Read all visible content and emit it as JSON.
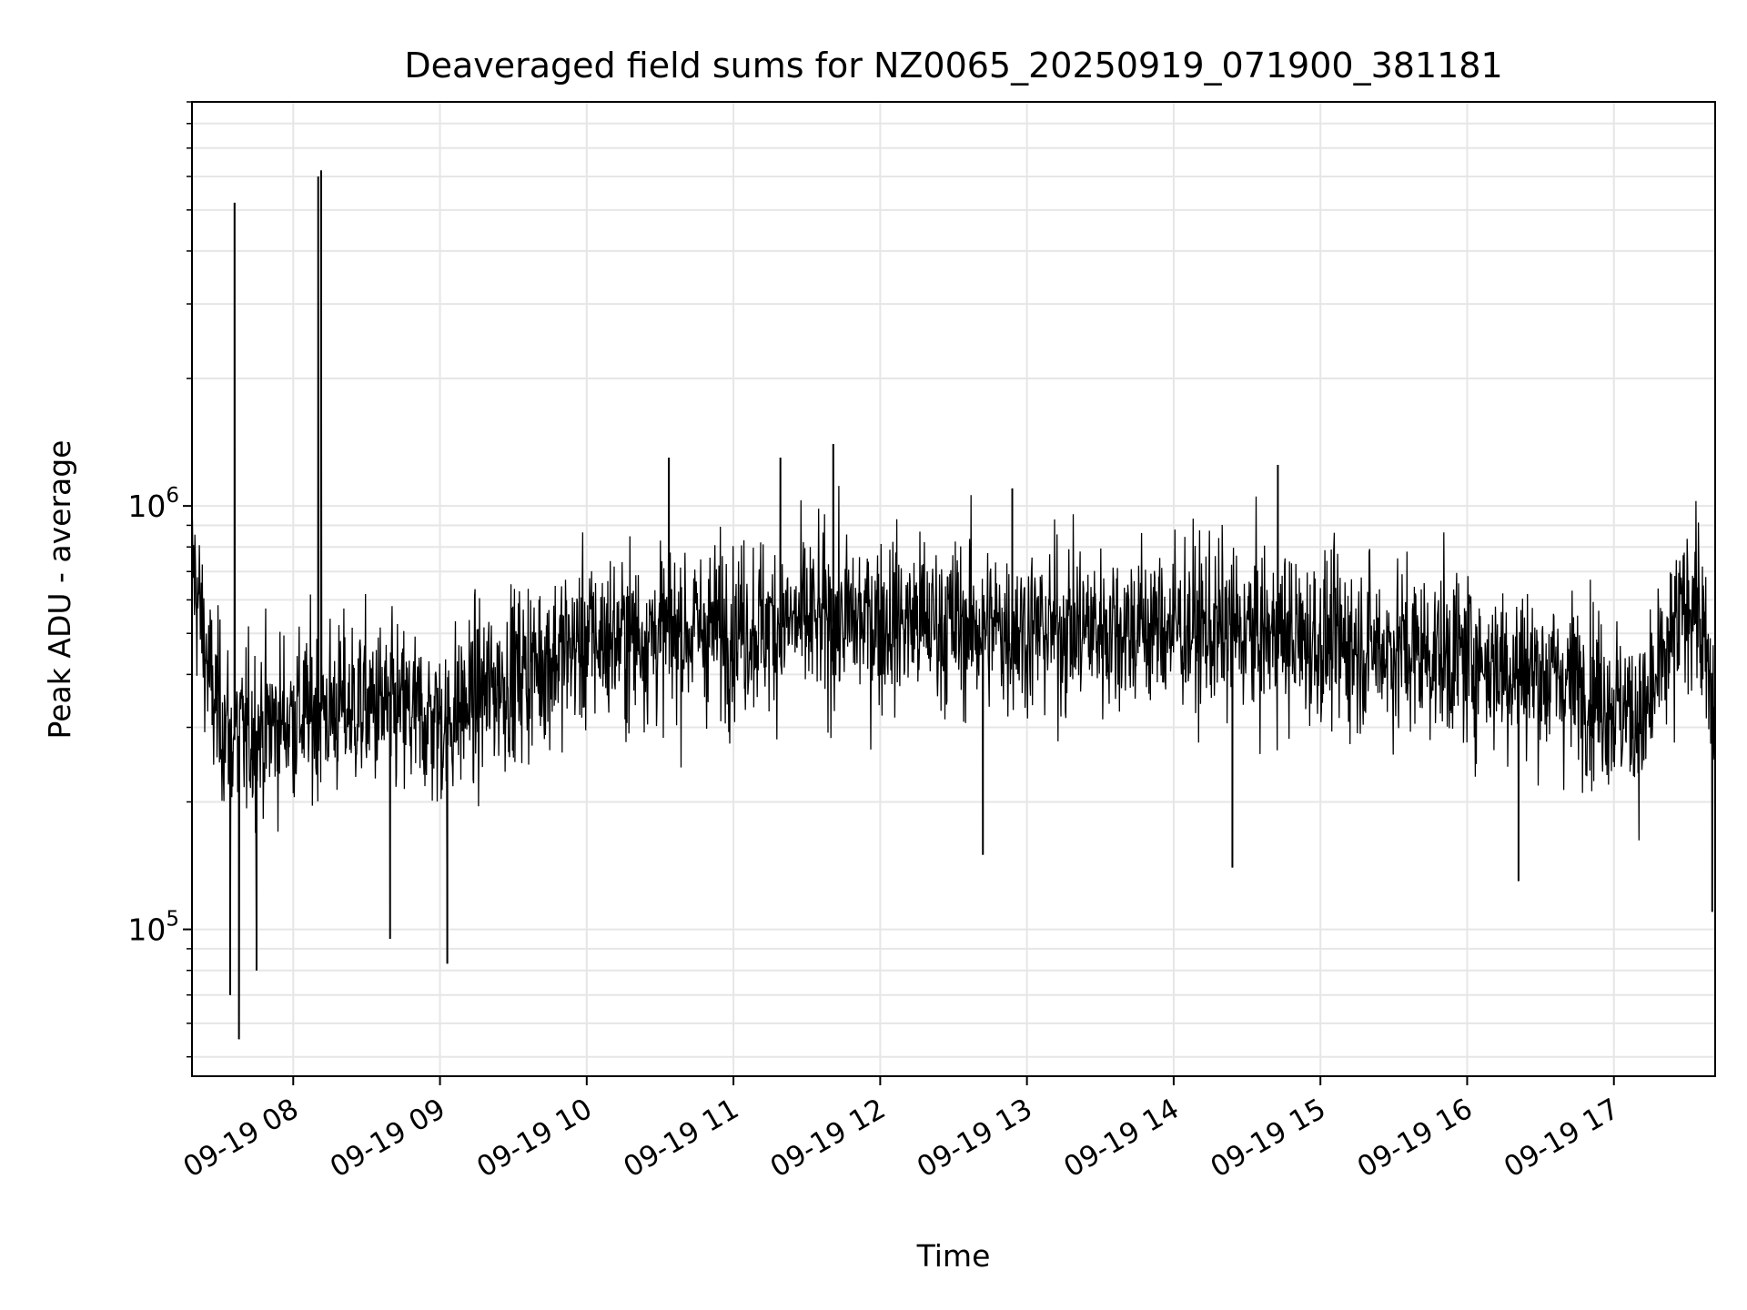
{
  "chart_data": {
    "type": "line",
    "title": "Deaveraged field sums for NZ0065_20250919_071900_381181",
    "xlabel": "Time",
    "ylabel": "Peak ADU - average",
    "yscale": "log",
    "ylim": [
      45000,
      9000000
    ],
    "xlim_hours": [
      7.31,
      17.69
    ],
    "grid": true,
    "line_color": "#000000",
    "grid_color": "#e6e6e6",
    "y_ticks": [
      {
        "value": 100000,
        "base": "10",
        "exp": "5"
      },
      {
        "value": 1000000,
        "base": "10",
        "exp": "6"
      }
    ],
    "x_ticks": [
      {
        "hour": 8,
        "label": "09-19 08"
      },
      {
        "hour": 9,
        "label": "09-19 09"
      },
      {
        "hour": 10,
        "label": "09-19 10"
      },
      {
        "hour": 11,
        "label": "09-19 11"
      },
      {
        "hour": 12,
        "label": "09-19 12"
      },
      {
        "hour": 13,
        "label": "09-19 13"
      },
      {
        "hour": 14,
        "label": "09-19 14"
      },
      {
        "hour": 15,
        "label": "09-19 15"
      },
      {
        "hour": 16,
        "label": "09-19 16"
      },
      {
        "hour": 17,
        "label": "09-19 17"
      }
    ],
    "series": [
      {
        "name": "field sums",
        "trend": [
          {
            "hour": 7.31,
            "value": 750000
          },
          {
            "hour": 7.45,
            "value": 350000
          },
          {
            "hour": 7.6,
            "value": 280000
          },
          {
            "hour": 8.0,
            "value": 320000
          },
          {
            "hour": 8.5,
            "value": 340000
          },
          {
            "hour": 9.0,
            "value": 310000
          },
          {
            "hour": 9.5,
            "value": 400000
          },
          {
            "hour": 10.0,
            "value": 480000
          },
          {
            "hour": 11.0,
            "value": 520000
          },
          {
            "hour": 12.0,
            "value": 540000
          },
          {
            "hour": 13.0,
            "value": 510000
          },
          {
            "hour": 14.0,
            "value": 520000
          },
          {
            "hour": 15.0,
            "value": 480000
          },
          {
            "hour": 16.0,
            "value": 440000
          },
          {
            "hour": 16.8,
            "value": 380000
          },
          {
            "hour": 17.2,
            "value": 310000
          },
          {
            "hour": 17.55,
            "value": 650000
          },
          {
            "hour": 17.69,
            "value": 300000
          }
        ],
        "spikes": [
          {
            "hour": 7.6,
            "value": 5200000
          },
          {
            "hour": 7.63,
            "value": 55000
          },
          {
            "hour": 8.17,
            "value": 6000000
          },
          {
            "hour": 8.19,
            "value": 6200000
          },
          {
            "hour": 7.57,
            "value": 70000
          },
          {
            "hour": 7.75,
            "value": 80000
          },
          {
            "hour": 9.05,
            "value": 83000
          },
          {
            "hour": 8.66,
            "value": 95000
          },
          {
            "hour": 11.68,
            "value": 1400000
          },
          {
            "hour": 10.56,
            "value": 1300000
          },
          {
            "hour": 11.32,
            "value": 1300000
          },
          {
            "hour": 14.71,
            "value": 1250000
          },
          {
            "hour": 12.9,
            "value": 1100000
          },
          {
            "hour": 14.4,
            "value": 140000
          },
          {
            "hour": 12.7,
            "value": 150000
          },
          {
            "hour": 16.35,
            "value": 130000
          },
          {
            "hour": 17.67,
            "value": 110000
          }
        ]
      }
    ]
  }
}
